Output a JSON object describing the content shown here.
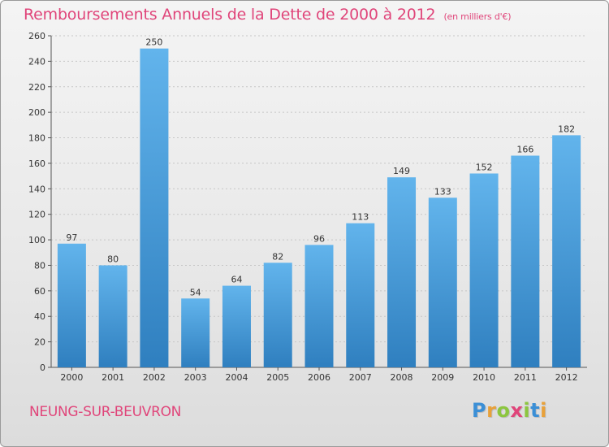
{
  "header": {
    "title": "Remboursements Annuels de la Dette de 2000 à 2012",
    "subtitle": "(en milliers d'€)"
  },
  "footer": {
    "city": "NEUNG-SUR-BEUVRON",
    "logo_letters": [
      "P",
      "r",
      "o",
      "x",
      "i",
      "t",
      "i"
    ],
    "logo_colors": [
      "#3b8fd6",
      "#e8a13a",
      "#8cc63f",
      "#e0457a",
      "#8cc63f",
      "#3b8fd6",
      "#e8a13a"
    ]
  },
  "colors": {
    "bar_top": "#62b4ec",
    "bar_bottom": "#2f7fbf",
    "title": "#e0457a"
  },
  "chart_data": {
    "type": "bar",
    "categories": [
      "2000",
      "2001",
      "2002",
      "2003",
      "2004",
      "2005",
      "2006",
      "2007",
      "2008",
      "2009",
      "2010",
      "2011",
      "2012"
    ],
    "values": [
      97,
      80,
      250,
      54,
      64,
      82,
      96,
      113,
      149,
      133,
      152,
      166,
      182
    ],
    "title": "Remboursements Annuels de la Dette de 2000 à 2012",
    "subtitle": "(en milliers d'€)",
    "xlabel": "",
    "ylabel": "",
    "ylim": [
      0,
      260
    ],
    "yticks": [
      0,
      20,
      40,
      60,
      80,
      100,
      120,
      140,
      160,
      180,
      200,
      220,
      240,
      260
    ],
    "grid": true
  }
}
